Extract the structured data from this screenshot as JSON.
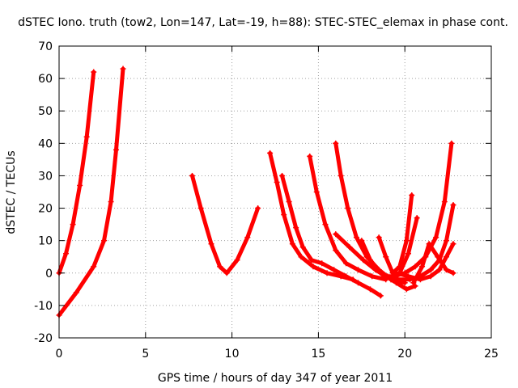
{
  "chart_data": {
    "type": "scatter",
    "title": "dSTEC Iono. truth (tow2, Lon=147, Lat=-19, h=88): STEC-STEC_elemax in phase cont.",
    "xlabel": "GPS time / hours of day 347 of year 2011",
    "ylabel": "dSTEC  / TECUs",
    "xlim": [
      0,
      25
    ],
    "ylim": [
      -20,
      70
    ],
    "x_ticks": [
      0,
      5,
      10,
      15,
      20,
      25
    ],
    "y_ticks": [
      -20,
      -10,
      0,
      10,
      20,
      30,
      40,
      50,
      60,
      70
    ],
    "grid": true,
    "marker": "+",
    "color": "#ff0000",
    "series": [
      {
        "x": [
          0.0,
          0.4,
          0.8,
          1.2,
          1.6,
          2.0
        ],
        "y": [
          0.0,
          6.0,
          15.0,
          27.0,
          42.0,
          62.0
        ]
      },
      {
        "x": [
          0.0,
          1.0,
          2.0,
          2.6,
          3.0,
          3.3,
          3.7
        ],
        "y": [
          -13.0,
          -6.0,
          2.0,
          10.0,
          22.0,
          38.0,
          63.0
        ]
      },
      {
        "x": [
          7.7,
          8.2,
          8.8,
          9.3,
          9.7,
          10.3,
          10.9,
          11.5
        ],
        "y": [
          30.0,
          20.0,
          9.0,
          2.0,
          0.0,
          4.0,
          11.0,
          20.0
        ]
      },
      {
        "x": [
          12.2,
          12.6,
          13.0,
          13.5,
          14.0,
          14.7,
          15.5,
          16.3,
          17.0
        ],
        "y": [
          37.0,
          28.0,
          18.0,
          9.0,
          5.0,
          2.0,
          0.0,
          -1.0,
          -2.0
        ]
      },
      {
        "x": [
          12.9,
          13.3,
          13.7,
          14.1,
          14.6,
          15.2,
          15.9,
          16.6,
          17.3,
          18.0,
          18.6
        ],
        "y": [
          30.0,
          22.0,
          14.0,
          8.0,
          4.0,
          3.0,
          1.0,
          -1.0,
          -3.0,
          -5.0,
          -7.0
        ]
      },
      {
        "x": [
          14.5,
          14.9,
          15.4,
          16.0,
          16.6,
          17.3,
          18.1,
          18.9
        ],
        "y": [
          36.0,
          25.0,
          15.0,
          7.0,
          3.0,
          1.0,
          -1.0,
          -2.0
        ]
      },
      {
        "x": [
          16.0,
          16.3,
          16.7,
          17.2,
          17.8,
          18.5,
          19.2,
          20.0
        ],
        "y": [
          40.0,
          30.0,
          20.0,
          11.0,
          5.0,
          1.0,
          -2.0,
          -3.0
        ]
      },
      {
        "x": [
          16.0,
          16.8,
          17.6,
          18.3,
          18.9,
          19.5,
          20.1,
          20.6
        ],
        "y": [
          12.0,
          8.0,
          4.0,
          1.0,
          -1.0,
          -3.0,
          -5.0,
          -4.0
        ]
      },
      {
        "x": [
          17.5,
          18.0,
          18.6,
          19.2,
          19.7,
          20.2,
          20.7
        ],
        "y": [
          10.0,
          4.0,
          0.0,
          -2.0,
          0.0,
          6.0,
          17.0
        ]
      },
      {
        "x": [
          18.5,
          18.9,
          19.3,
          19.7,
          20.1,
          20.4
        ],
        "y": [
          11.0,
          5.0,
          0.0,
          2.0,
          10.0,
          24.0
        ]
      },
      {
        "x": [
          18.8,
          19.4,
          20.0,
          20.6,
          21.2,
          21.8,
          22.3,
          22.7
        ],
        "y": [
          -1.0,
          -1.0,
          0.0,
          2.0,
          5.0,
          11.0,
          22.0,
          40.0
        ]
      },
      {
        "x": [
          19.0,
          19.6,
          20.3,
          20.9,
          21.5,
          22.0,
          22.4,
          22.8
        ],
        "y": [
          -1.0,
          -2.0,
          -2.0,
          -1.0,
          1.0,
          4.0,
          10.0,
          21.0
        ]
      },
      {
        "x": [
          19.5,
          20.2,
          20.9,
          21.5,
          22.0,
          22.4,
          22.8
        ],
        "y": [
          0.0,
          -1.0,
          -2.0,
          -1.0,
          1.0,
          5.0,
          9.0
        ]
      },
      {
        "x": [
          20.5,
          21.0,
          21.4,
          21.9,
          22.4,
          22.8
        ],
        "y": [
          -3.0,
          2.0,
          9.0,
          5.0,
          1.0,
          0.0
        ]
      }
    ]
  }
}
